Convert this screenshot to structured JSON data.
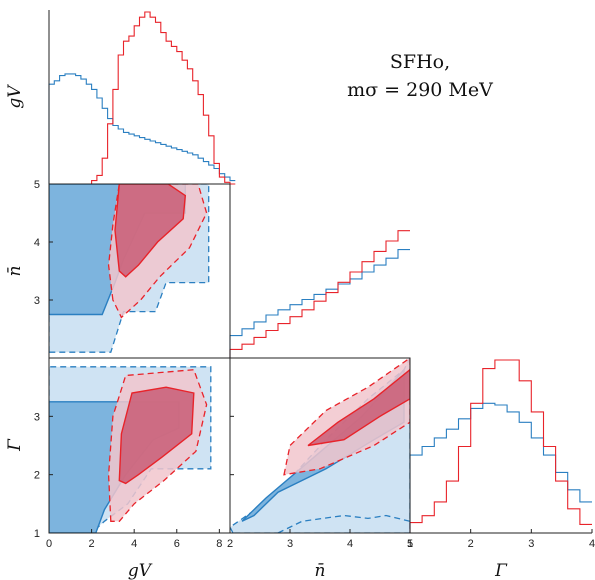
{
  "chart_data": {
    "type": "corner",
    "annotation": [
      "SFHo,",
      "mσ = 290 MeV"
    ],
    "params": [
      {
        "key": "gV",
        "label": "gV",
        "range": [
          0,
          8.5
        ],
        "ticks": [
          "0",
          "2",
          "4",
          "6",
          "8"
        ]
      },
      {
        "key": "n",
        "label": "n̄",
        "range": [
          2,
          5
        ],
        "ticks": [
          "2",
          "3",
          "4",
          "5"
        ]
      },
      {
        "key": "G",
        "label": "Γ",
        "range": [
          1,
          4
        ],
        "ticks": [
          "1",
          "2",
          "3",
          "4"
        ]
      }
    ],
    "left_ticks": {
      "n": [
        "3",
        "4",
        "5"
      ],
      "G": [
        "1",
        "2",
        "3"
      ]
    },
    "colors": {
      "blue_line": "#2a7fc1",
      "blue_fill_outer": "#cfe3f3",
      "blue_fill_inner": "#7db4de",
      "red_line": "#e8232a",
      "red_fill_outer": "#f1c6cc",
      "red_fill_inner": "#c95d76"
    },
    "histograms": {
      "gV": {
        "red": {
          "edges_start": 0,
          "step": 0.25,
          "values": [
            0,
            0,
            0,
            0,
            0,
            0,
            0,
            0,
            0.02,
            0.05,
            0.15,
            0.35,
            0.55,
            0.75,
            0.83,
            0.86,
            0.92,
            0.97,
            1.0,
            0.97,
            0.94,
            0.88,
            0.83,
            0.8,
            0.77,
            0.72,
            0.67,
            0.6,
            0.52,
            0.4,
            0.28,
            0.12,
            0.04,
            0.01,
            0
          ]
        },
        "blue": {
          "edges_start": 0,
          "step": 0.25,
          "values": [
            0.58,
            0.6,
            0.63,
            0.64,
            0.64,
            0.63,
            0.61,
            0.58,
            0.55,
            0.5,
            0.44,
            0.38,
            0.34,
            0.32,
            0.3,
            0.29,
            0.28,
            0.27,
            0.26,
            0.25,
            0.24,
            0.23,
            0.22,
            0.21,
            0.2,
            0.19,
            0.18,
            0.17,
            0.15,
            0.13,
            0.11,
            0.09,
            0.06,
            0.04,
            0.02
          ]
        }
      },
      "n": {
        "red": {
          "edges_start": 2,
          "step": 0.2,
          "values": [
            0.05,
            0.08,
            0.12,
            0.16,
            0.2,
            0.24,
            0.28,
            0.33,
            0.38,
            0.44,
            0.5,
            0.56,
            0.62,
            0.68,
            0.74
          ]
        },
        "blue": {
          "edges_start": 2,
          "step": 0.2,
          "values": [
            0.13,
            0.17,
            0.21,
            0.25,
            0.28,
            0.31,
            0.34,
            0.37,
            0.4,
            0.43,
            0.46,
            0.5,
            0.54,
            0.58,
            0.63
          ]
        }
      },
      "G": {
        "red": {
          "edges_start": 1,
          "step": 0.2,
          "values": [
            0.06,
            0.1,
            0.18,
            0.3,
            0.5,
            0.75,
            0.95,
            1.0,
            1.0,
            0.88,
            0.7,
            0.5,
            0.3,
            0.14,
            0.05
          ]
        },
        "blue": {
          "edges_start": 1,
          "step": 0.2,
          "values": [
            0.45,
            0.5,
            0.55,
            0.6,
            0.66,
            0.72,
            0.75,
            0.74,
            0.7,
            0.64,
            0.55,
            0.45,
            0.35,
            0.25,
            0.18
          ]
        }
      }
    },
    "contours": {
      "n_vs_gV": {
        "blue_outer": [
          [
            0,
            2.1
          ],
          [
            0,
            5
          ],
          [
            7.5,
            5
          ],
          [
            7.5,
            3.3
          ],
          [
            5.5,
            3.3
          ],
          [
            5.0,
            2.8
          ],
          [
            3.5,
            2.8
          ],
          [
            2.9,
            2.1
          ]
        ],
        "blue_inner": [
          [
            0,
            2.75
          ],
          [
            0,
            5
          ],
          [
            6.4,
            5
          ],
          [
            6.4,
            4.5
          ],
          [
            4.5,
            4.5
          ],
          [
            3.5,
            3.7
          ],
          [
            3.1,
            3.3
          ],
          [
            2.5,
            2.75
          ]
        ],
        "red_outer": [
          [
            3.0,
            3.0
          ],
          [
            2.8,
            3.6
          ],
          [
            3.0,
            4.3
          ],
          [
            3.3,
            5.0
          ],
          [
            7.0,
            5.0
          ],
          [
            7.4,
            4.5
          ],
          [
            6.6,
            3.9
          ],
          [
            5.2,
            3.4
          ],
          [
            4.3,
            3.0
          ],
          [
            3.4,
            2.7
          ]
        ],
        "red_inner": [
          [
            3.3,
            3.5
          ],
          [
            3.1,
            4.2
          ],
          [
            3.3,
            5.0
          ],
          [
            5.6,
            5.0
          ],
          [
            6.4,
            4.8
          ],
          [
            6.3,
            4.4
          ],
          [
            5.1,
            4.0
          ],
          [
            4.2,
            3.6
          ],
          [
            3.6,
            3.4
          ]
        ]
      },
      "G_vs_gV": {
        "blue_outer": [
          [
            2.0,
            1.0
          ],
          [
            0,
            1.0
          ],
          [
            0,
            3.85
          ],
          [
            7.6,
            3.85
          ],
          [
            7.6,
            2.1
          ],
          [
            4.8,
            2.1
          ],
          [
            3.7,
            1.5
          ],
          [
            2.6,
            1.2
          ]
        ],
        "blue_inner": [
          [
            0,
            1.0
          ],
          [
            0,
            3.25
          ],
          [
            6.1,
            3.25
          ],
          [
            6.1,
            2.8
          ],
          [
            4.9,
            2.6
          ],
          [
            3.6,
            2.0
          ],
          [
            2.6,
            1.4
          ],
          [
            2.2,
            1.0
          ]
        ],
        "red_outer": [
          [
            2.9,
            1.2
          ],
          [
            2.8,
            2.0
          ],
          [
            3.0,
            3.0
          ],
          [
            3.6,
            3.7
          ],
          [
            6.8,
            3.8
          ],
          [
            7.4,
            3.2
          ],
          [
            6.9,
            2.4
          ],
          [
            5.4,
            1.9
          ],
          [
            4.0,
            1.5
          ],
          [
            3.3,
            1.2
          ]
        ],
        "red_inner": [
          [
            3.3,
            1.9
          ],
          [
            3.4,
            2.7
          ],
          [
            3.9,
            3.4
          ],
          [
            5.5,
            3.5
          ],
          [
            6.8,
            3.4
          ],
          [
            6.7,
            2.7
          ],
          [
            5.3,
            2.3
          ],
          [
            4.2,
            2.0
          ],
          [
            3.6,
            1.85
          ]
        ]
      },
      "G_vs_n": {
        "blue_outer": [
          [
            2.05,
            1.0
          ],
          [
            2.0,
            1.1
          ],
          [
            2.7,
            1.6
          ],
          [
            3.6,
            2.6
          ],
          [
            4.3,
            3.3
          ],
          [
            4.9,
            3.8
          ],
          [
            5.0,
            4.0
          ],
          [
            5.0,
            1.0
          ]
        ],
        "blue_inner": [
          [
            2.2,
            1.2
          ],
          [
            2.6,
            1.6
          ],
          [
            3.4,
            2.3
          ],
          [
            4.2,
            3.0
          ],
          [
            4.9,
            3.8
          ],
          [
            4.9,
            2.9
          ],
          [
            4.4,
            2.6
          ],
          [
            3.6,
            2.1
          ],
          [
            2.8,
            1.7
          ],
          [
            2.4,
            1.3
          ]
        ],
        "red_outer": [
          [
            2.9,
            2.0
          ],
          [
            3.0,
            2.5
          ],
          [
            3.6,
            3.1
          ],
          [
            4.3,
            3.5
          ],
          [
            5.0,
            4.0
          ],
          [
            5.0,
            2.9
          ],
          [
            4.4,
            2.5
          ],
          [
            3.5,
            2.1
          ]
        ],
        "red_inner": [
          [
            3.3,
            2.5
          ],
          [
            3.8,
            2.9
          ],
          [
            4.4,
            3.3
          ],
          [
            5.0,
            3.8
          ],
          [
            5.0,
            3.3
          ],
          [
            4.5,
            3.0
          ],
          [
            3.9,
            2.6
          ]
        ],
        "blue_dash_low": [
          [
            2.8,
            1.0
          ],
          [
            3.2,
            1.2
          ],
          [
            3.9,
            1.3
          ],
          [
            4.3,
            1.25
          ],
          [
            4.6,
            1.3
          ],
          [
            5.0,
            1.2
          ]
        ]
      }
    }
  }
}
